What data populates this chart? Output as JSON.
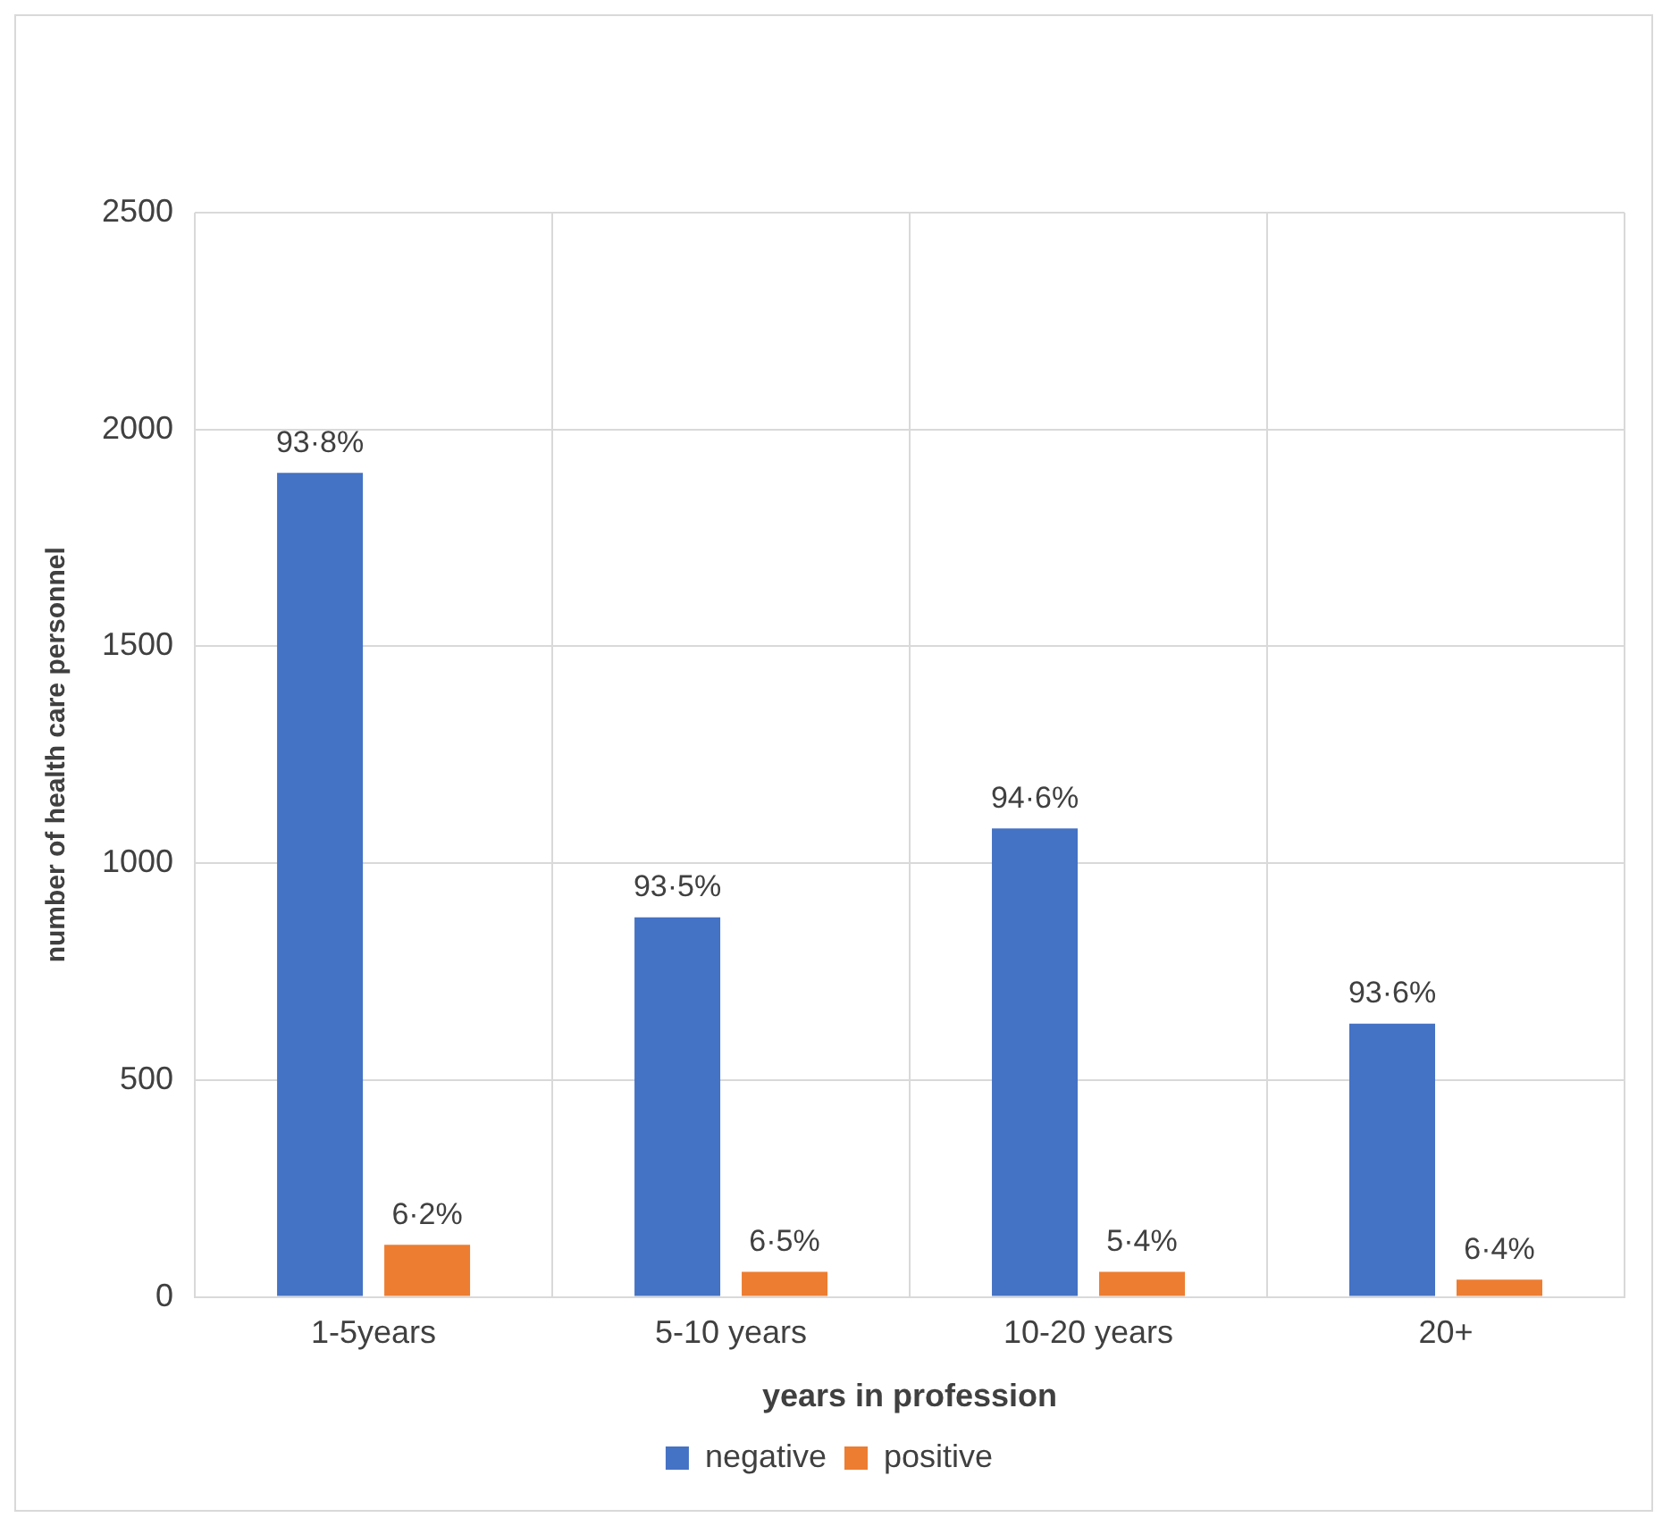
{
  "chart_data": {
    "type": "bar",
    "xlabel": "years in profession",
    "ylabel": "number of health care personnel",
    "categories": [
      "1-5years",
      "5-10 years",
      "10-20 years",
      "20+"
    ],
    "series": [
      {
        "name": "negative",
        "color": "#4472c4",
        "values": [
          1900,
          875,
          1080,
          630
        ]
      },
      {
        "name": "positive",
        "color": "#ed7d31",
        "values": [
          120,
          58,
          58,
          40
        ]
      }
    ],
    "annotations": [
      "93·8%",
      "93·5%",
      "94·6%",
      "93·6%",
      "6·2%",
      "6·5%",
      "5·4%",
      "6·4%"
    ],
    "ylim": [
      0,
      2500
    ],
    "yticks": [
      0,
      500,
      1000,
      1500,
      2000,
      2500
    ],
    "grid": true,
    "legend": "bottom"
  }
}
